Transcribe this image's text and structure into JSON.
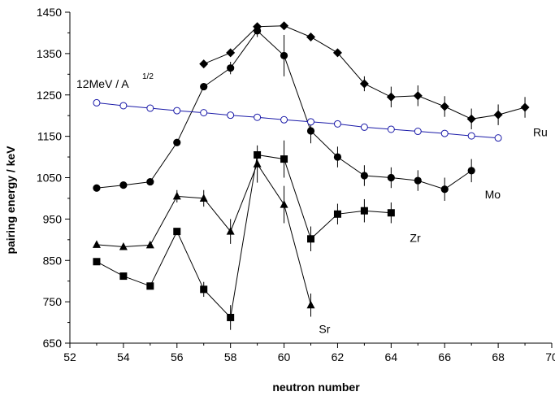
{
  "chart_data": {
    "type": "line",
    "xlabel": "neutron number",
    "ylabel": "pairing energy / keV",
    "xlim": [
      52,
      70
    ],
    "ylim": [
      650,
      1450
    ],
    "xticks": [
      "52",
      "54",
      "56",
      "58",
      "60",
      "62",
      "64",
      "66",
      "68",
      "70"
    ],
    "yticks": [
      "650",
      "750",
      "850",
      "950",
      "1050",
      "1150",
      "1250",
      "1350",
      "1450"
    ],
    "xtick_values": [
      52,
      54,
      56,
      58,
      60,
      62,
      64,
      66,
      68,
      70
    ],
    "ytick_values": [
      650,
      750,
      850,
      950,
      1050,
      1150,
      1250,
      1350,
      1450
    ],
    "grid": false,
    "formula": {
      "text": "12MeV / A",
      "sup": "1/2"
    },
    "series": [
      {
        "name": "Ru",
        "marker": "diamond",
        "color": "#000000",
        "x": [
          57,
          58,
          59,
          60,
          61,
          62,
          63,
          64,
          65,
          66,
          67,
          68,
          69
        ],
        "y": [
          1325,
          1352,
          1415,
          1417,
          1390,
          1352,
          1277,
          1245,
          1248,
          1222,
          1192,
          1202,
          1220
        ],
        "err": [
          0,
          0,
          0,
          0,
          0,
          0,
          18,
          25,
          25,
          25,
          25,
          25,
          25
        ]
      },
      {
        "name": "Mo",
        "marker": "circle",
        "color": "#000000",
        "x": [
          53,
          54,
          55,
          56,
          57,
          58,
          59,
          60,
          61,
          62,
          63,
          64,
          65,
          66,
          67
        ],
        "y": [
          1025,
          1032,
          1040,
          1135,
          1270,
          1315,
          1405,
          1345,
          1163,
          1100,
          1055,
          1050,
          1043,
          1022,
          1067
        ],
        "err": [
          0,
          0,
          0,
          0,
          0,
          15,
          15,
          50,
          30,
          25,
          25,
          25,
          25,
          28,
          28
        ]
      },
      {
        "name": "Zr",
        "marker": "square",
        "color": "#000000",
        "x": [
          53,
          54,
          55,
          56,
          57,
          58,
          59,
          60,
          61,
          62,
          63,
          64
        ],
        "y": [
          847,
          812,
          788,
          920,
          780,
          712,
          1105,
          1095,
          902,
          962,
          970,
          965
        ],
        "err": [
          0,
          0,
          0,
          0,
          18,
          30,
          0,
          45,
          30,
          25,
          28,
          25
        ]
      },
      {
        "name": "Sr",
        "marker": "triangle",
        "color": "#000000",
        "x": [
          53,
          54,
          55,
          56,
          57,
          58,
          59,
          60,
          61
        ],
        "y": [
          888,
          883,
          887,
          1005,
          1000,
          920,
          1083,
          985,
          742
        ],
        "err": [
          0,
          0,
          0,
          15,
          20,
          30,
          45,
          45,
          28
        ]
      },
      {
        "name": "",
        "marker": "open-circle",
        "color": "#1a1aa8",
        "x": [
          53,
          54,
          55,
          56,
          57,
          58,
          59,
          60,
          61,
          62,
          63,
          64,
          65,
          66,
          67,
          68
        ],
        "y": [
          1231,
          1224,
          1218,
          1212,
          1207,
          1201,
          1196,
          1190,
          1185,
          1180,
          1172,
          1167,
          1162,
          1157,
          1151,
          1146
        ],
        "err": []
      }
    ],
    "labels": [
      {
        "text": "Ru",
        "x": 69.3,
        "y": 1150
      },
      {
        "text": "Mo",
        "x": 67.5,
        "y": 1000
      },
      {
        "text": "Zr",
        "x": 64.7,
        "y": 895
      },
      {
        "text": "Sr",
        "x": 61.3,
        "y": 675
      }
    ]
  }
}
